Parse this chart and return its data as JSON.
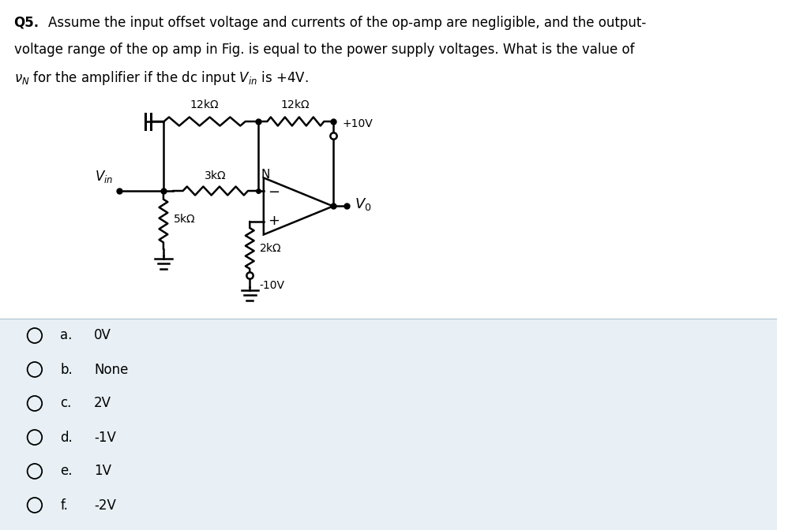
{
  "title_bold": "Q5.",
  "background_color": "#ffffff",
  "answer_bg_color": "#e8f0f5",
  "option_labels": [
    "a.",
    "b.",
    "c.",
    "d.",
    "e.",
    "f."
  ],
  "option_values": [
    "0V",
    "None",
    "2V",
    "-1V",
    "1V",
    "-2V"
  ]
}
